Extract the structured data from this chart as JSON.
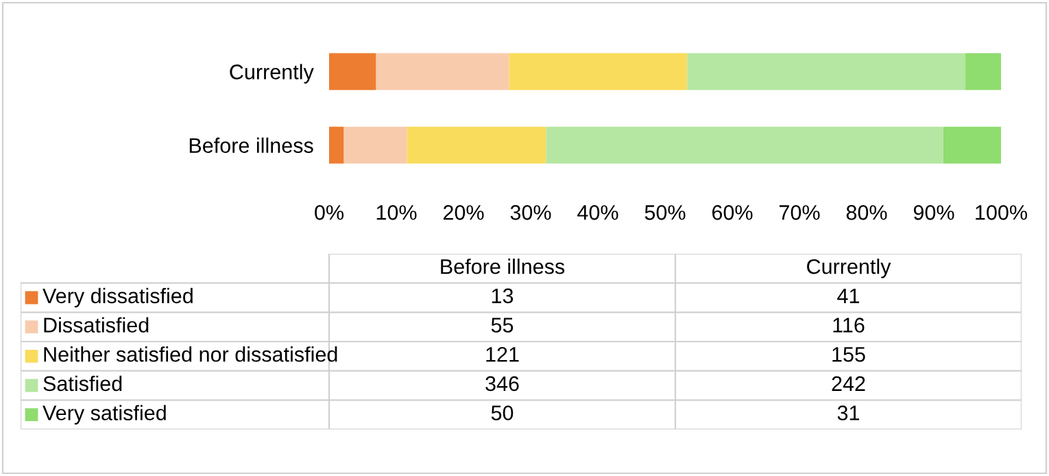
{
  "chart_data": [
    {
      "type": "bar",
      "orientation": "horizontal",
      "stacked": true,
      "categories": [
        "Currently",
        "Before illness"
      ],
      "series": [
        {
          "name": "Very dissatisfied",
          "color": "#ed7d31",
          "values": [
            7.0,
            2.2
          ]
        },
        {
          "name": "Dissatisfied",
          "color": "#f8cbad",
          "values": [
            19.8,
            9.4
          ]
        },
        {
          "name": "Neither satisfied nor dissatisfied",
          "color": "#f9dc5c",
          "values": [
            26.5,
            20.7
          ]
        },
        {
          "name": "Satisfied",
          "color": "#b5e6a2",
          "values": [
            41.4,
            59.1
          ]
        },
        {
          "name": "Very satisfied",
          "color": "#8fdc6f",
          "values": [
            5.3,
            8.6
          ]
        }
      ],
      "xlim": [
        0,
        100
      ],
      "xticks": [
        {
          "value": 0,
          "label": "0%"
        },
        {
          "value": 10,
          "label": "10%"
        },
        {
          "value": 20,
          "label": "20%"
        },
        {
          "value": 30,
          "label": "30%"
        },
        {
          "value": 40,
          "label": "40%"
        },
        {
          "value": 50,
          "label": "50%"
        },
        {
          "value": 60,
          "label": "60%"
        },
        {
          "value": 70,
          "label": "70%"
        },
        {
          "value": 80,
          "label": "80%"
        },
        {
          "value": 90,
          "label": "90%"
        },
        {
          "value": 100,
          "label": "100%"
        }
      ],
      "grid": false,
      "legend": "bottom"
    },
    {
      "type": "other",
      "categories": [
        "Before illness",
        "Currently"
      ],
      "cell_labels": [
        [
          "13",
          "41"
        ],
        [
          "55",
          "116"
        ],
        [
          "121",
          "155"
        ],
        [
          "346",
          "242"
        ],
        [
          "50",
          "31"
        ]
      ]
    }
  ]
}
